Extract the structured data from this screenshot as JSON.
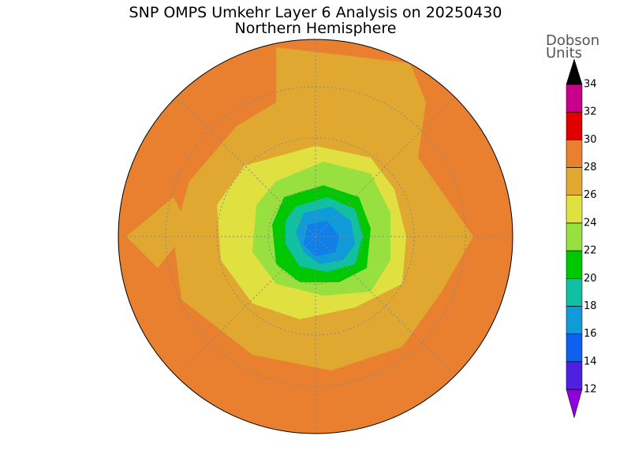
{
  "title": "SNP OMPS Umkehr Layer 6 Analysis on 20250430",
  "subtitle": "Northern Hemisphere",
  "colorbar": {
    "label_lines": [
      "Dobson",
      "Units"
    ],
    "ticks": [
      12,
      14,
      16,
      18,
      20,
      22,
      24,
      26,
      28,
      30,
      32,
      34
    ],
    "colors": [
      "#9000d8",
      "#5020e0",
      "#1060f0",
      "#109ad8",
      "#10c0a0",
      "#00c800",
      "#98e040",
      "#e0e040",
      "#e0a830",
      "#e88030",
      "#e00000",
      "#c8008c"
    ]
  }
}
